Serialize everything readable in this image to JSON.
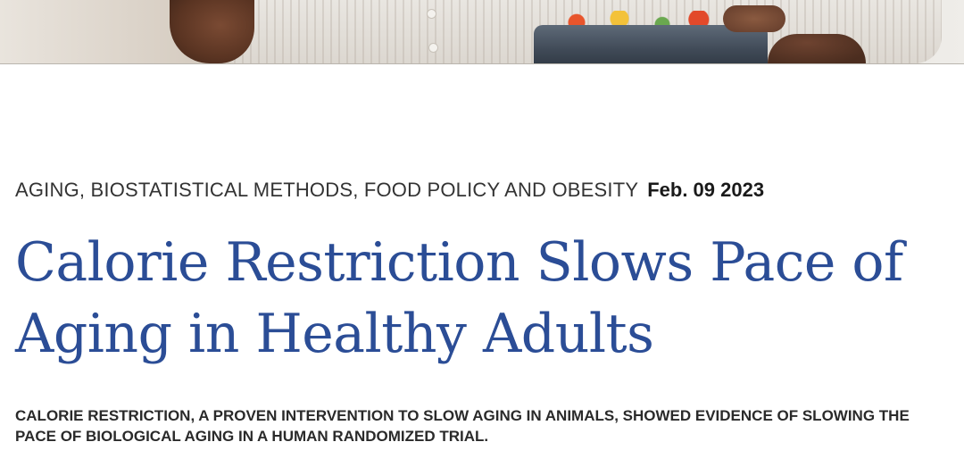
{
  "hero": {
    "image_subject": "person-holding-salad-bowl"
  },
  "article": {
    "categories": "AGING, BIOSTATISTICAL METHODS, FOOD POLICY AND OBESITY",
    "date": "Feb. 09 2023",
    "title": "Calorie Restriction Slows Pace of Aging in Healthy Adults",
    "dek": "CALORIE RESTRICTION, A PROVEN INTERVENTION TO SLOW AGING IN ANIMALS, SHOWED EVIDENCE OF SLOWING THE PACE OF BIOLOGICAL AGING IN A HUMAN RANDOMIZED TRIAL."
  },
  "colors": {
    "title": "#2b4d96",
    "meta_text": "#333333",
    "dek_text": "#2a2a2a",
    "background": "#ffffff"
  }
}
